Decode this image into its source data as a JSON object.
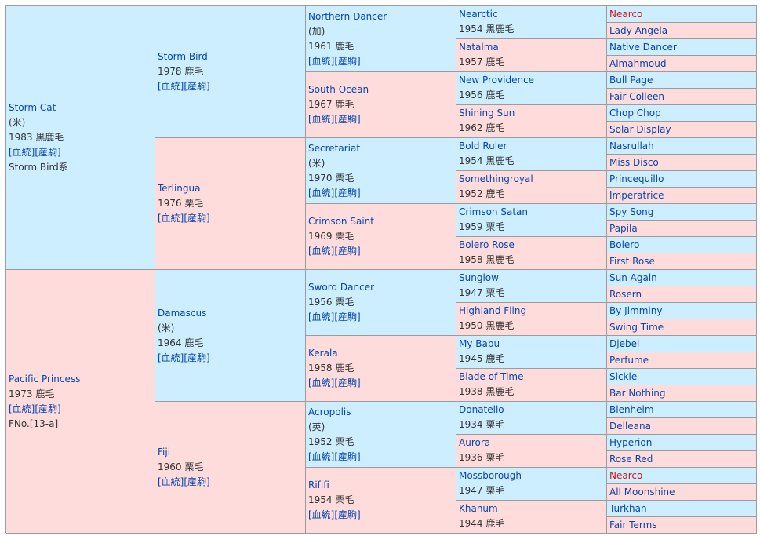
{
  "gen1": [
    {
      "name": "Storm Cat",
      "origin": "(米)",
      "info": "1983 黒鹿毛",
      "links": "[血統][産駒]",
      "extra": "Storm Bird系",
      "sex": "m"
    },
    {
      "name": "Pacific Princess",
      "origin": "",
      "info": "1973 鹿毛",
      "links": "[血統][産駒]",
      "extra": "FNo.[13-a]",
      "sex": "f"
    }
  ],
  "gen2": [
    {
      "name": "Storm Bird",
      "origin": "",
      "info": "1978 鹿毛",
      "links": "[血統][産駒]",
      "sex": "m"
    },
    {
      "name": "Terlingua",
      "origin": "",
      "info": "1976 栗毛",
      "links": "[血統][産駒]",
      "sex": "f"
    },
    {
      "name": "Damascus",
      "origin": "(米)",
      "info": "1964 鹿毛",
      "links": "[血統][産駒]",
      "sex": "m"
    },
    {
      "name": "Fiji",
      "origin": "",
      "info": "1960 栗毛",
      "links": "[血統][産駒]",
      "sex": "f"
    }
  ],
  "gen3": [
    {
      "name": "Northern Dancer",
      "origin": "(加)",
      "info": "1961 鹿毛",
      "links": "[血統][産駒]",
      "sex": "m"
    },
    {
      "name": "South Ocean",
      "origin": "",
      "info": "1967 鹿毛",
      "links": "[血統][産駒]",
      "sex": "f"
    },
    {
      "name": "Secretariat",
      "origin": "(米)",
      "info": "1970 栗毛",
      "links": "[血統][産駒]",
      "sex": "m"
    },
    {
      "name": "Crimson Saint",
      "origin": "",
      "info": "1969 栗毛",
      "links": "[血統][産駒]",
      "sex": "f"
    },
    {
      "name": "Sword Dancer",
      "origin": "",
      "info": "1956 栗毛",
      "links": "[血統][産駒]",
      "sex": "m"
    },
    {
      "name": "Kerala",
      "origin": "",
      "info": "1958 鹿毛",
      "links": "[血統][産駒]",
      "sex": "f"
    },
    {
      "name": "Acropolis",
      "origin": "(英)",
      "info": "1952 栗毛",
      "links": "[血統][産駒]",
      "sex": "m"
    },
    {
      "name": "Rififi",
      "origin": "",
      "info": "1954 栗毛",
      "links": "[血統][産駒]",
      "sex": "f"
    }
  ],
  "gen4": [
    {
      "name": "Nearctic",
      "info": "1954 黒鹿毛",
      "sex": "m"
    },
    {
      "name": "Natalma",
      "info": "1957 鹿毛",
      "sex": "f"
    },
    {
      "name": "New Providence",
      "info": "1956 鹿毛",
      "sex": "m"
    },
    {
      "name": "Shining Sun",
      "info": "1962 鹿毛",
      "sex": "f"
    },
    {
      "name": "Bold Ruler",
      "info": "1954 黒鹿毛",
      "sex": "m"
    },
    {
      "name": "Somethingroyal",
      "info": "1952 鹿毛",
      "sex": "f"
    },
    {
      "name": "Crimson Satan",
      "info": "1959 栗毛",
      "sex": "m"
    },
    {
      "name": "Bolero Rose",
      "info": "1958 黒鹿毛",
      "sex": "f"
    },
    {
      "name": "Sunglow",
      "info": "1947 栗毛",
      "sex": "m"
    },
    {
      "name": "Highland Fling",
      "info": "1950 黒鹿毛",
      "sex": "f"
    },
    {
      "name": "My Babu",
      "info": "1945 鹿毛",
      "sex": "m"
    },
    {
      "name": "Blade of Time",
      "info": "1938 黒鹿毛",
      "sex": "f"
    },
    {
      "name": "Donatello",
      "info": "1934 栗毛",
      "sex": "m"
    },
    {
      "name": "Aurora",
      "info": "1936 栗毛",
      "sex": "f"
    },
    {
      "name": "Mossborough",
      "info": "1947 栗毛",
      "sex": "m"
    },
    {
      "name": "Khanum",
      "info": "1944 鹿毛",
      "sex": "f"
    }
  ],
  "gen5": [
    {
      "name": "Nearco",
      "sex": "m",
      "highlight": true
    },
    {
      "name": "Lady Angela",
      "sex": "f"
    },
    {
      "name": "Native Dancer",
      "sex": "m"
    },
    {
      "name": "Almahmoud",
      "sex": "f"
    },
    {
      "name": "Bull Page",
      "sex": "m"
    },
    {
      "name": "Fair Colleen",
      "sex": "f"
    },
    {
      "name": "Chop Chop",
      "sex": "m"
    },
    {
      "name": "Solar Display",
      "sex": "f"
    },
    {
      "name": "Nasrullah",
      "sex": "m"
    },
    {
      "name": "Miss Disco",
      "sex": "f"
    },
    {
      "name": "Princequillo",
      "sex": "m"
    },
    {
      "name": "Imperatrice",
      "sex": "f"
    },
    {
      "name": "Spy Song",
      "sex": "m"
    },
    {
      "name": "Papila",
      "sex": "f"
    },
    {
      "name": "Bolero",
      "sex": "m"
    },
    {
      "name": "First Rose",
      "sex": "f"
    },
    {
      "name": "Sun Again",
      "sex": "m"
    },
    {
      "name": "Rosern",
      "sex": "f"
    },
    {
      "name": "By Jimminy",
      "sex": "m"
    },
    {
      "name": "Swing Time",
      "sex": "f"
    },
    {
      "name": "Djebel",
      "sex": "m"
    },
    {
      "name": "Perfume",
      "sex": "f"
    },
    {
      "name": "Sickle",
      "sex": "m"
    },
    {
      "name": "Bar Nothing",
      "sex": "f"
    },
    {
      "name": "Blenheim",
      "sex": "m"
    },
    {
      "name": "Delleana",
      "sex": "f"
    },
    {
      "name": "Hyperion",
      "sex": "m"
    },
    {
      "name": "Rose Red",
      "sex": "f"
    },
    {
      "name": "Nearco",
      "sex": "m",
      "highlight": true
    },
    {
      "name": "All Moonshine",
      "sex": "f"
    },
    {
      "name": "Turkhan",
      "sex": "m"
    },
    {
      "name": "Fair Terms",
      "sex": "f"
    }
  ],
  "colors": {
    "male_bg": "#cceeff",
    "female_bg": "#ffdcdc",
    "link": "#0645ad",
    "highlight": "#d11111"
  }
}
